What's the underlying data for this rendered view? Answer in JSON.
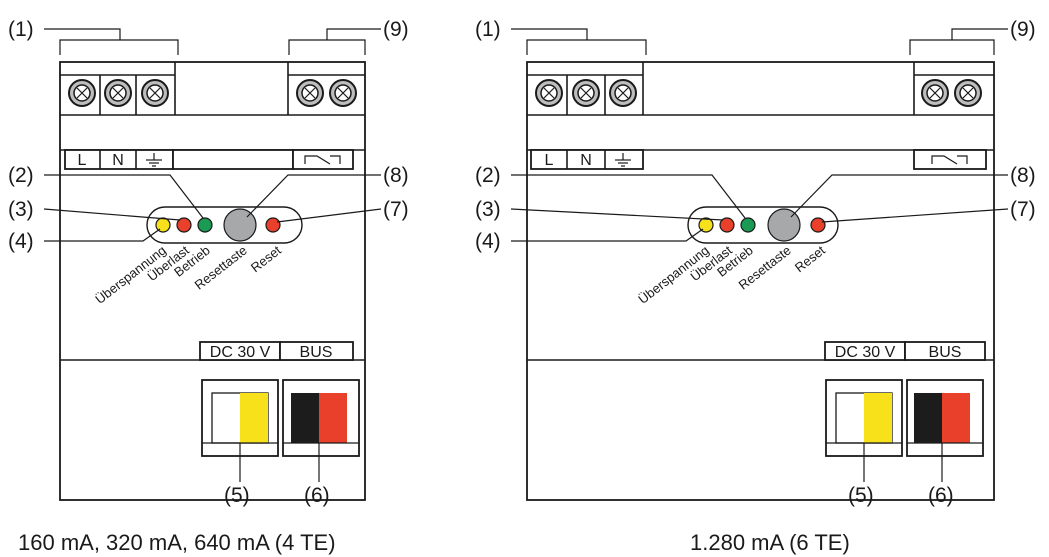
{
  "colors": {
    "yellow_led": "#f7e11b",
    "red_led": "#e8402b",
    "green_led": "#1a9a52",
    "reset_button": "#a7a8aa",
    "bus_black": "#1c1c1c",
    "bus_red": "#e8402b",
    "dc_yellow": "#f7e11b",
    "screw_grey": "#bdbdbd"
  },
  "diagrams": [
    {
      "variant": "4TE",
      "callouts": [
        "(1)",
        "(2)",
        "(3)",
        "(4)",
        "(5)",
        "(6)",
        "(7)",
        "(8)",
        "(9)"
      ],
      "terminals": {
        "l": "L",
        "n": "N"
      },
      "led_labels": [
        "Überspannung",
        "Überlast",
        "Betrieb",
        "Resettaste",
        "Reset"
      ],
      "bus_header": {
        "dc": "DC 30 V",
        "bus": "BUS"
      },
      "caption": "160 mA, 320 mA, 640 mA (4 TE)"
    },
    {
      "variant": "6TE",
      "callouts": [
        "(1)",
        "(2)",
        "(3)",
        "(4)",
        "(5)",
        "(6)",
        "(7)",
        "(8)",
        "(9)"
      ],
      "terminals": {
        "l": "L",
        "n": "N"
      },
      "led_labels": [
        "Überspannung",
        "Überlast",
        "Betrieb",
        "Resettaste",
        "Reset"
      ],
      "bus_header": {
        "dc": "DC 30 V",
        "bus": "BUS"
      },
      "caption": "1.280 mA (6 TE)"
    }
  ]
}
